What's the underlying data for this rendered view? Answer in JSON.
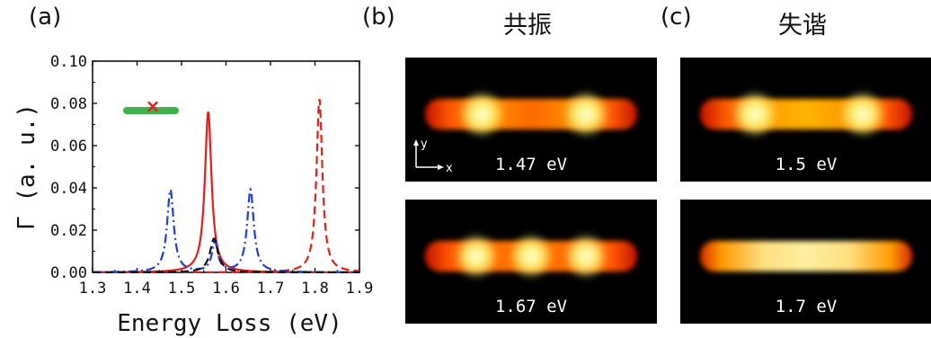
{
  "labels": {
    "a": "(a)",
    "b": "(b)",
    "c": "(c)"
  },
  "headers": {
    "resonance": "共振",
    "detuned": "失谐"
  },
  "maps": [
    {
      "energy": "1.47 eV",
      "spots": 2,
      "style": "two-spot"
    },
    {
      "energy": "1.5 eV",
      "spots": 2,
      "style": "two-spot"
    },
    {
      "energy": "1.67 eV",
      "spots": 3,
      "style": "three-spot"
    },
    {
      "energy": "1.7 eV",
      "spots": 0,
      "style": "uniform"
    }
  ],
  "axis_hint": {
    "y": "y",
    "x": "x"
  },
  "chart_data": {
    "type": "line",
    "xlabel": "Energy Loss (eV)",
    "ylabel": "Γ (a. u.)",
    "xlim": [
      1.3,
      1.9
    ],
    "ylim": [
      0.0,
      0.1
    ],
    "xticks": [
      "1.3",
      "1.4",
      "1.5",
      "1.6",
      "1.7",
      "1.8",
      "1.9"
    ],
    "yticks": [
      "0.00",
      "0.02",
      "0.04",
      "0.06",
      "0.08",
      "0.10"
    ],
    "series": [
      {
        "style": "solid",
        "color": "#e0201b",
        "peaks": [
          {
            "x0": 1.56,
            "amp": 0.076,
            "gamma": 0.009
          }
        ]
      },
      {
        "style": "dashed",
        "color": "#e0201b",
        "peaks": [
          {
            "x0": 1.81,
            "amp": 0.082,
            "gamma": 0.008
          }
        ]
      },
      {
        "style": "dashdot",
        "color": "#1f3fcf",
        "peaks": [
          {
            "x0": 1.475,
            "amp": 0.039,
            "gamma": 0.009
          },
          {
            "x0": 1.575,
            "amp": 0.014,
            "gamma": 0.008
          },
          {
            "x0": 1.655,
            "amp": 0.039,
            "gamma": 0.009
          }
        ]
      },
      {
        "style": "dashed",
        "color": "#111111",
        "peaks": [
          {
            "x0": 1.573,
            "amp": 0.016,
            "gamma": 0.011
          }
        ]
      }
    ],
    "inset": {
      "rod_color": "#3cb44b",
      "marker_color": "#e0201b",
      "marker": "x"
    }
  }
}
